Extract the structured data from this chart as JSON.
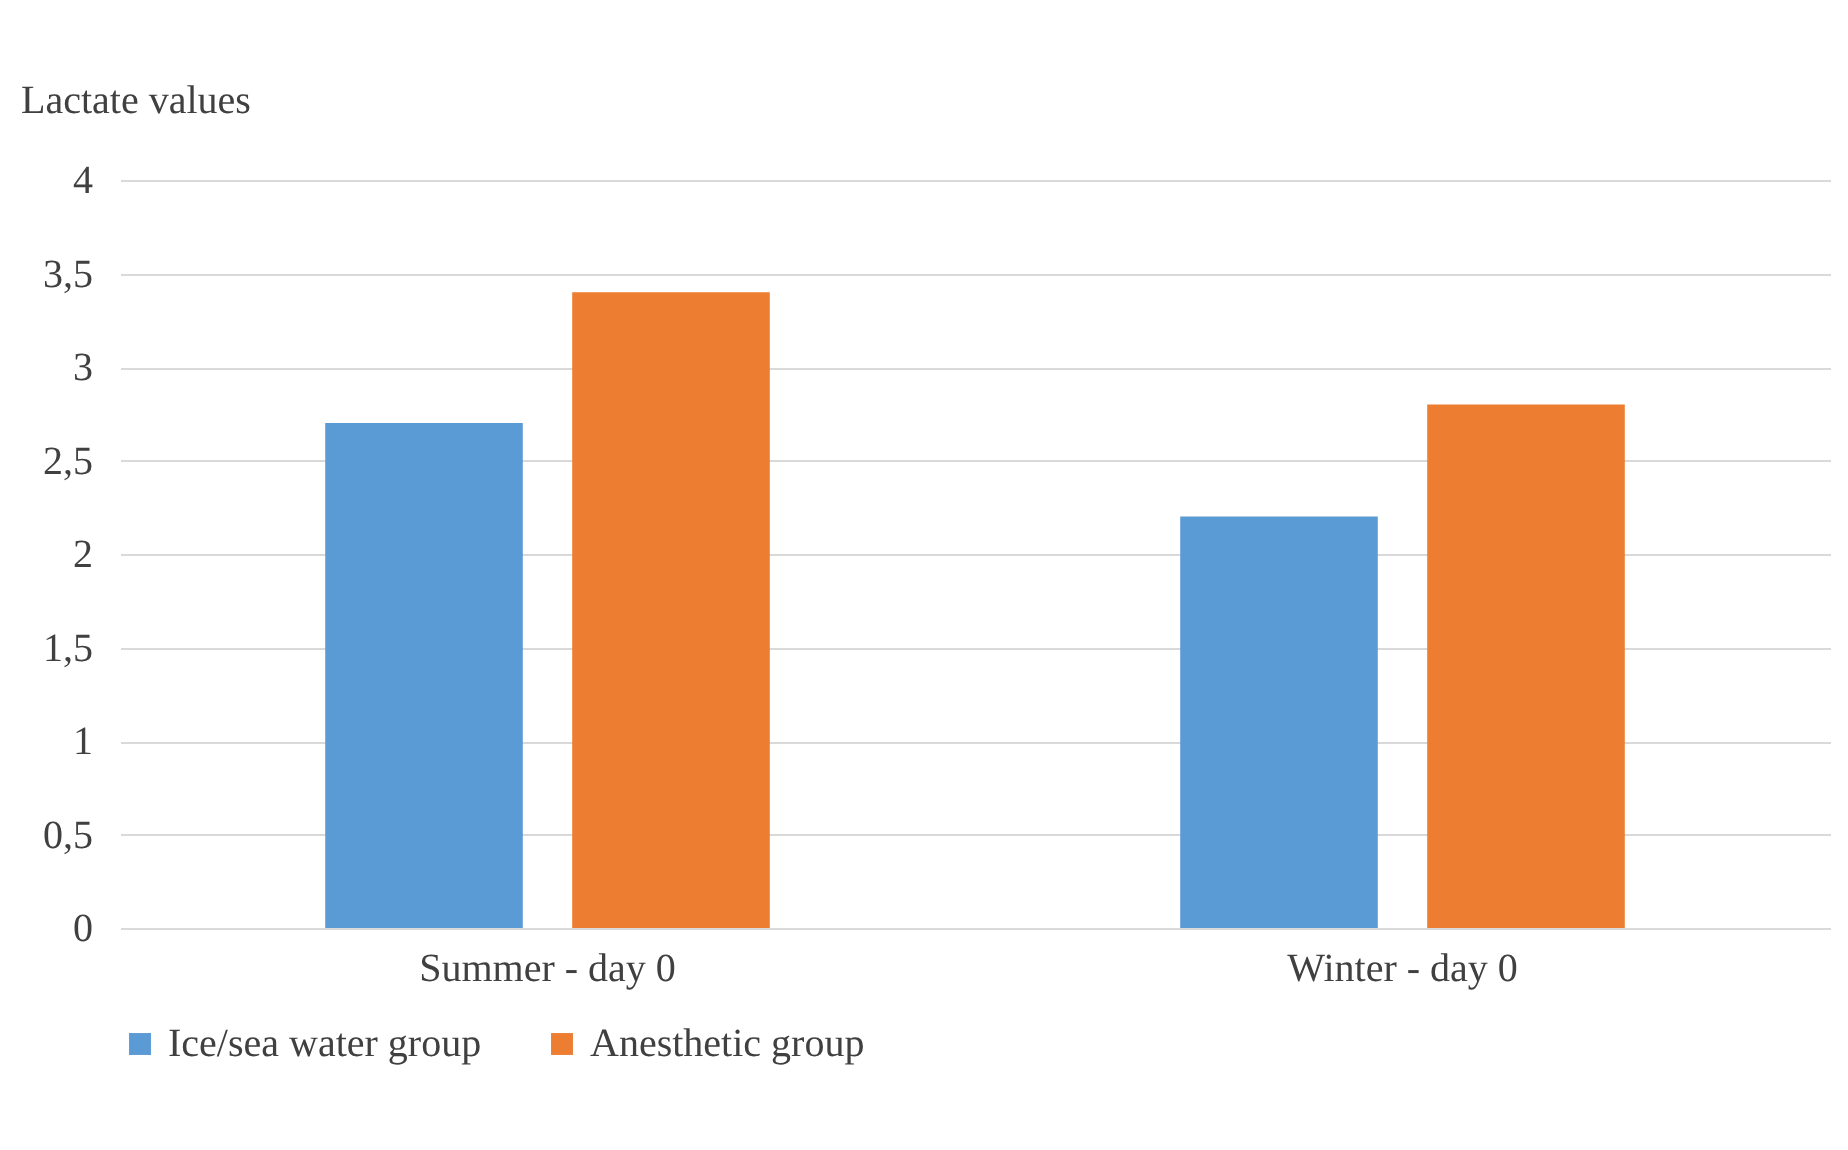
{
  "chart_data": {
    "type": "bar",
    "ylabel": "Lactate values",
    "categories": [
      "Summer - day 0",
      "Winter - day 0"
    ],
    "series": [
      {
        "name": "Ice/sea water group",
        "color": "#5b9bd5",
        "values": [
          2.7,
          2.2
        ]
      },
      {
        "name": "Anesthetic group",
        "color": "#ed7d31",
        "values": [
          3.4,
          2.8
        ]
      }
    ],
    "ylim": [
      0,
      4
    ],
    "yticks": [
      0,
      {
        "value": 0.5,
        "label": "0,5"
      },
      1,
      {
        "value": 1.5,
        "label": "1,5"
      },
      2,
      {
        "value": 2.5,
        "label": "2,5"
      },
      3,
      {
        "value": 3.5,
        "label": "3,5"
      },
      4
    ],
    "grid": "y",
    "legend": "bottom"
  }
}
